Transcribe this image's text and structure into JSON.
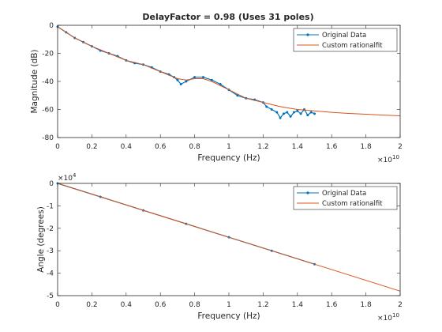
{
  "chart_data": [
    {
      "type": "line",
      "title": "DelayFactor = 0.98 (Uses 31 poles)",
      "xlabel": "Frequency (Hz)",
      "ylabel": "Magnitude (dB)",
      "x_exponent_label": "×10",
      "x_exponent": "10",
      "xlim": [
        0,
        2
      ],
      "ylim": [
        -80,
        0
      ],
      "xticks": [
        0,
        0.2,
        0.4,
        0.6,
        0.8,
        1,
        1.2,
        1.4,
        1.6,
        1.8,
        2
      ],
      "xtick_labels": [
        "0",
        "0.2",
        "0.4",
        "0.6",
        "0.8",
        "1",
        "1.2",
        "1.4",
        "1.6",
        "1.8",
        "2"
      ],
      "yticks": [
        0,
        -20,
        -40,
        -60,
        -80
      ],
      "ytick_labels": [
        "0",
        "-20",
        "-40",
        "-60",
        "-80"
      ],
      "legend_position": "top-right",
      "series": [
        {
          "name": "Original Data",
          "color": "#0072bd",
          "marker": "dot",
          "x": [
            0,
            0.05,
            0.1,
            0.15,
            0.2,
            0.25,
            0.3,
            0.35,
            0.4,
            0.45,
            0.5,
            0.55,
            0.6,
            0.65,
            0.68,
            0.7,
            0.72,
            0.75,
            0.8,
            0.85,
            0.9,
            0.95,
            1.0,
            1.05,
            1.1,
            1.15,
            1.2,
            1.22,
            1.25,
            1.28,
            1.3,
            1.32,
            1.34,
            1.36,
            1.38,
            1.4,
            1.42,
            1.44,
            1.46,
            1.48,
            1.5
          ],
          "y": [
            -1,
            -5,
            -9,
            -12,
            -15,
            -18,
            -20,
            -22,
            -25,
            -27,
            -28,
            -30,
            -33,
            -35,
            -37,
            -39,
            -42,
            -40,
            -37,
            -37,
            -39,
            -42,
            -46,
            -50,
            -52,
            -53,
            -55,
            -58,
            -60,
            -62,
            -66,
            -63,
            -62,
            -65,
            -62,
            -61,
            -63,
            -60,
            -64,
            -62,
            -63
          ]
        },
        {
          "name": "Custom rationalfit",
          "color": "#d95319",
          "x": [
            0,
            0.1,
            0.2,
            0.3,
            0.4,
            0.5,
            0.6,
            0.7,
            0.75,
            0.8,
            0.85,
            0.9,
            1.0,
            1.1,
            1.2,
            1.3,
            1.4,
            1.5,
            1.6,
            1.7,
            1.8,
            1.9,
            2.0
          ],
          "y": [
            -1,
            -9,
            -15,
            -20,
            -25,
            -28,
            -33,
            -38,
            -39,
            -38,
            -38,
            -40,
            -46,
            -52,
            -55,
            -58,
            -60,
            -61,
            -62,
            -62.8,
            -63.4,
            -64,
            -64.5
          ]
        }
      ]
    },
    {
      "type": "line",
      "title": "",
      "xlabel": "Frequency (Hz)",
      "ylabel": "Angle (degrees)",
      "x_exponent_label": "×10",
      "x_exponent": "10",
      "y_exponent_label": "×10",
      "y_exponent": "4",
      "xlim": [
        0,
        2
      ],
      "ylim": [
        -5,
        0
      ],
      "xticks": [
        0,
        0.2,
        0.4,
        0.6,
        0.8,
        1,
        1.2,
        1.4,
        1.6,
        1.8,
        2
      ],
      "xtick_labels": [
        "0",
        "0.2",
        "0.4",
        "0.6",
        "0.8",
        "1",
        "1.2",
        "1.4",
        "1.6",
        "1.8",
        "2"
      ],
      "yticks": [
        0,
        -1,
        -2,
        -3,
        -4,
        -5
      ],
      "ytick_labels": [
        "0",
        "-1",
        "-2",
        "-3",
        "-4",
        "-5"
      ],
      "legend_position": "top-right",
      "series": [
        {
          "name": "Original Data",
          "color": "#0072bd",
          "marker": "dot",
          "x": [
            0,
            0.25,
            0.5,
            0.75,
            1.0,
            1.25,
            1.5
          ],
          "y": [
            0,
            -0.6,
            -1.2,
            -1.8,
            -2.4,
            -3.0,
            -3.6
          ]
        },
        {
          "name": "Custom rationalfit",
          "color": "#d95319",
          "x": [
            0,
            0.5,
            1.0,
            1.5,
            2.0
          ],
          "y": [
            0,
            -1.2,
            -2.4,
            -3.6,
            -4.8
          ]
        }
      ]
    }
  ]
}
